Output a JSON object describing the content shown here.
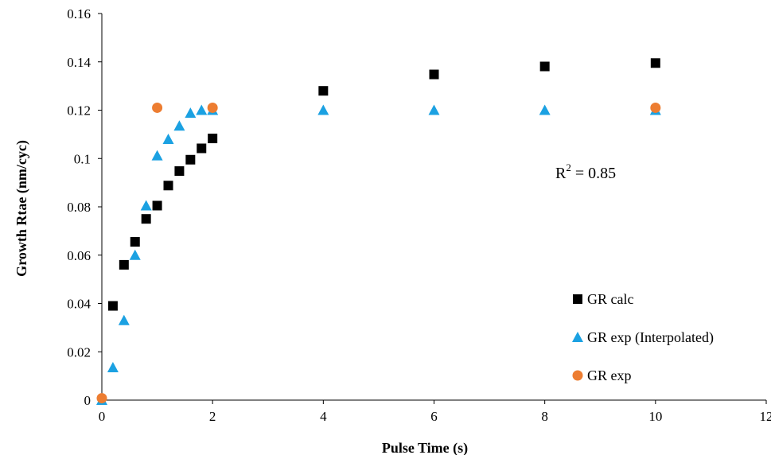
{
  "chart_data": {
    "type": "scatter",
    "title": "",
    "xlabel": "Pulse Time (s)",
    "ylabel": "Growth Rtae (nm/cyc)",
    "xlim": [
      0,
      12
    ],
    "ylim": [
      0,
      0.16
    ],
    "xticks": [
      "0",
      "2",
      "4",
      "6",
      "8",
      "10",
      "12"
    ],
    "yticks": [
      "0",
      "0.02",
      "0.04",
      "0.06",
      "0.08",
      "0.1",
      "0.12",
      "0.14",
      "0.16"
    ],
    "grid": false,
    "legend_position": "bottom-right",
    "annotation": {
      "base": "R",
      "sup": "2",
      "rest": " = 0.85"
    },
    "series": [
      {
        "name": "GR calc",
        "marker": "square",
        "color": "#000000",
        "x": [
          0.2,
          0.4,
          0.6,
          0.8,
          1.0,
          1.2,
          1.4,
          1.6,
          1.8,
          2.0,
          4,
          6,
          8,
          10
        ],
        "y": [
          0.039,
          0.056,
          0.0655,
          0.075,
          0.0805,
          0.0888,
          0.0948,
          0.0995,
          0.1042,
          0.1083,
          0.128,
          0.1348,
          0.1381,
          0.1395
        ]
      },
      {
        "name": "GR exp (Interpolated)",
        "marker": "triangle",
        "color": "#1BA1E2",
        "x": [
          0,
          0.2,
          0.4,
          0.6,
          0.8,
          1.0,
          1.2,
          1.4,
          1.6,
          1.8,
          2.0,
          4,
          6,
          8,
          10
        ],
        "y": [
          0.0,
          0.0135,
          0.033,
          0.06,
          0.0805,
          0.1012,
          0.108,
          0.1135,
          0.1188,
          0.12,
          0.12,
          0.12,
          0.12,
          0.12,
          0.12
        ]
      },
      {
        "name": "GR exp",
        "marker": "circle",
        "color": "#ED7D31",
        "x": [
          0,
          1.0,
          2.0,
          10
        ],
        "y": [
          0.0008,
          0.121,
          0.121,
          0.121
        ]
      }
    ]
  }
}
